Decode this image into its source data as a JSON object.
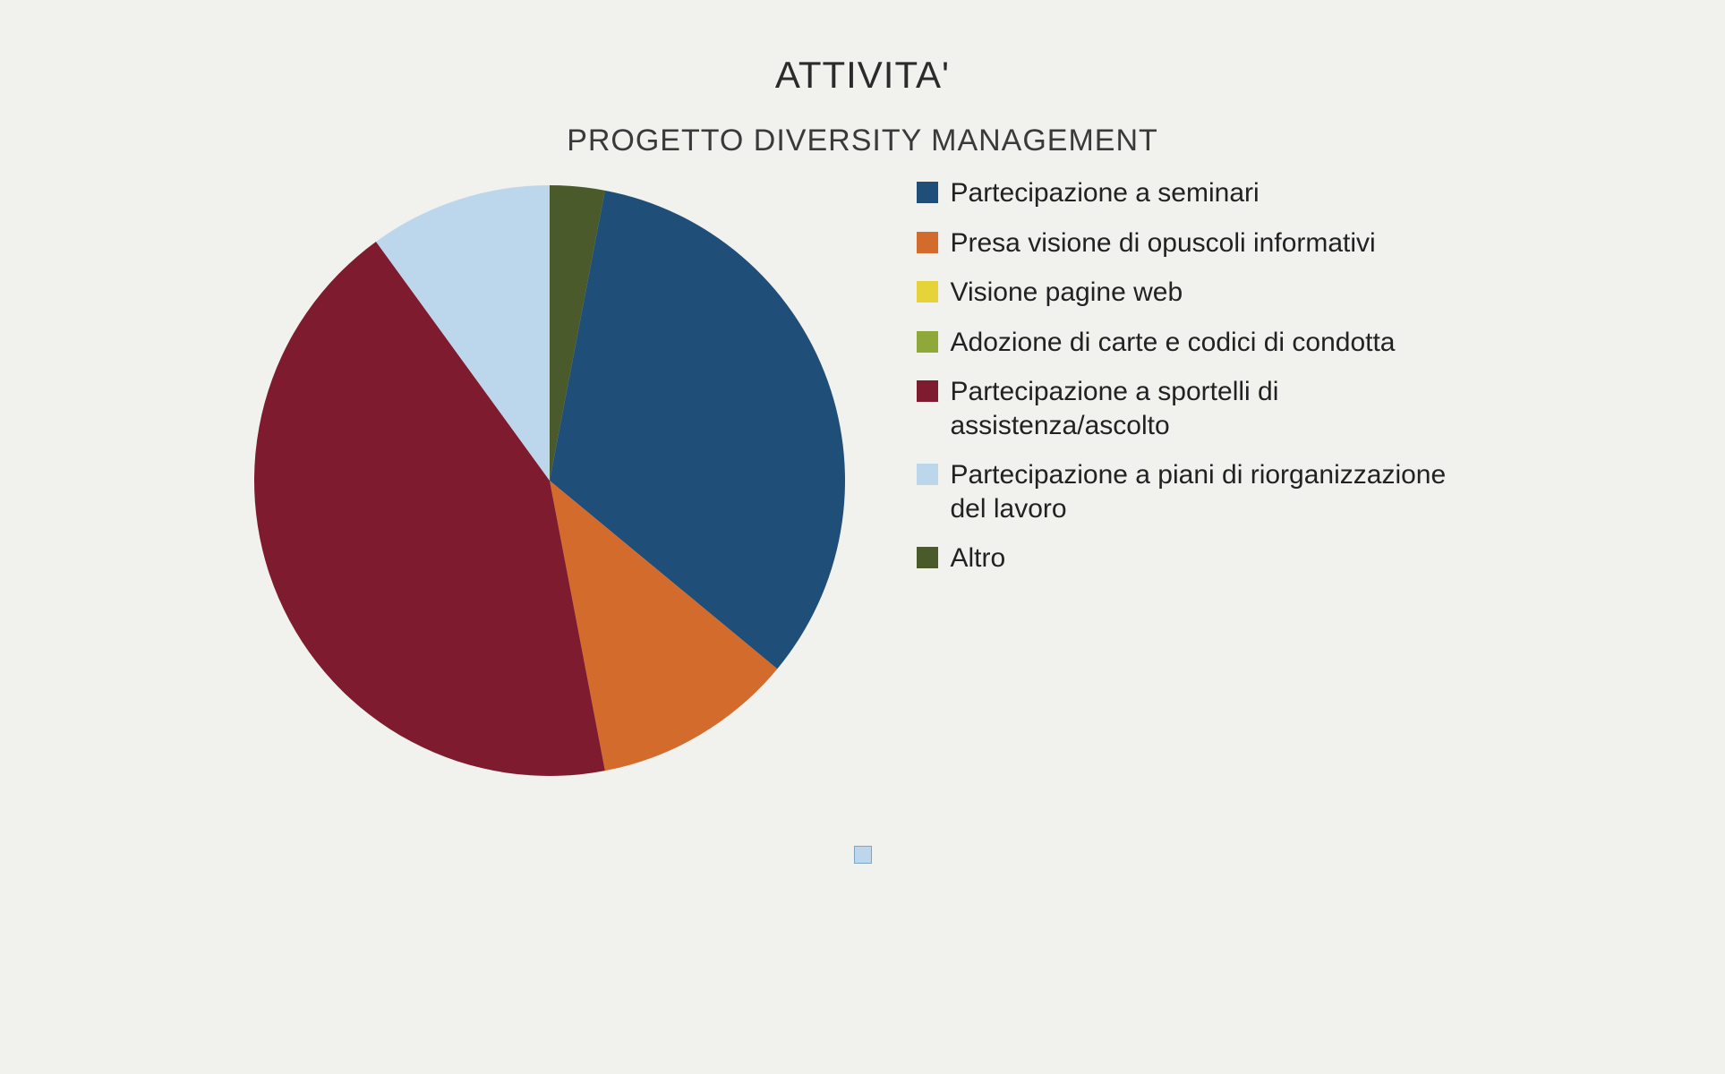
{
  "chart": {
    "type": "pie",
    "title": "ATTIVITA'",
    "subtitle": "PROGETTO DIVERSITY MANAGEMENT",
    "title_fontsize": 42,
    "subtitle_fontsize": 34,
    "background_color": "#f1f1ee",
    "text_color": "#2b2b2b",
    "pie_radius": 330,
    "start_angle_deg": -90,
    "slices": [
      {
        "label": "Altro",
        "value": 3,
        "color": "#4a5a2a"
      },
      {
        "label": "Partecipazione a seminari",
        "value": 33,
        "color": "#1f4e79"
      },
      {
        "label": "Presa visione di opuscoli informativi",
        "value": 11,
        "color": "#d26b2c"
      },
      {
        "label": "Visione pagine web",
        "value": 0,
        "color": "#e6d33a"
      },
      {
        "label": "Adozione di carte e codici di condotta",
        "value": 0,
        "color": "#8fa83a"
      },
      {
        "label": "Partecipazione a sportelli di assistenza/ascolto",
        "value": 43,
        "color": "#7f1b2e"
      },
      {
        "label": "Partecipazione a piani di riorganizzazione del lavoro",
        "value": 10,
        "color": "#bcd6ec"
      }
    ],
    "legend_order": [
      "Partecipazione a seminari",
      "Presa visione di opuscoli informativi",
      "Visione pagine web",
      "Adozione di carte e codici di condotta",
      "Partecipazione a sportelli di assistenza/ascolto",
      "Partecipazione a piani di riorganizzazione del lavoro",
      "Altro"
    ],
    "legend_fontsize": 30,
    "legend_swatch_size": 24,
    "footer_marker_color": "#bcd6ec",
    "footer_marker_border": "#7da6c4"
  }
}
